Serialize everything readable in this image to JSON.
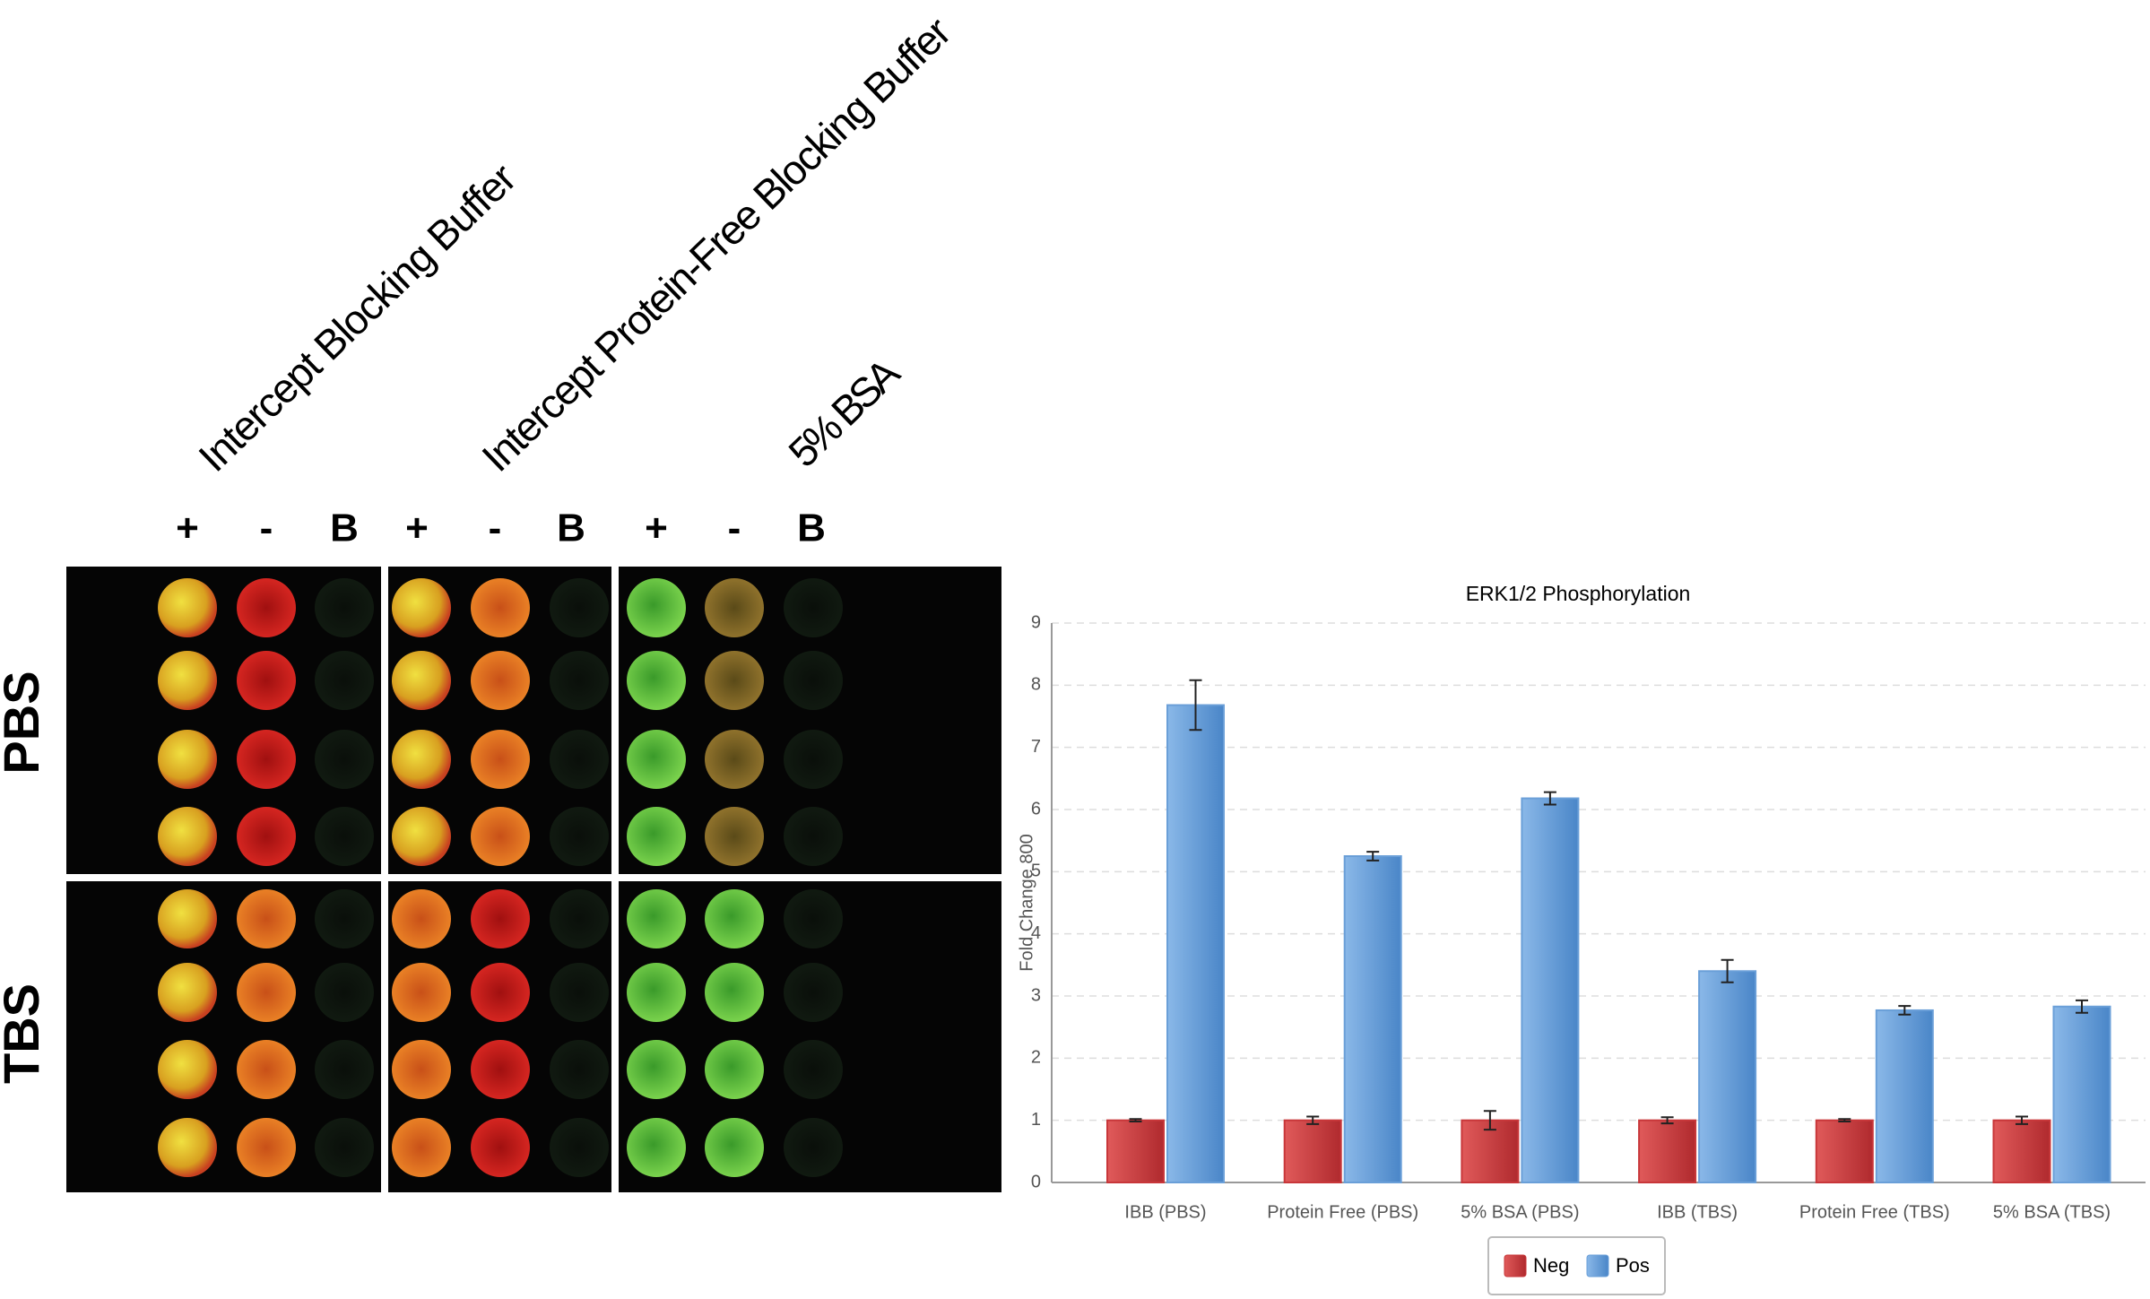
{
  "plate": {
    "groups": [
      {
        "label": "Intercept Blocking Buffer",
        "lanes": [
          "+",
          "-",
          "B"
        ]
      },
      {
        "label": "Intercept Protein-Free Blocking Buffer",
        "lanes": [
          "+",
          "-",
          "B"
        ]
      },
      {
        "label": "5% BSA",
        "lanes": [
          "+",
          "-",
          "B"
        ]
      }
    ],
    "rows": [
      "PBS",
      "TBS"
    ]
  },
  "chart_data": {
    "type": "bar",
    "title": "ERK1/2 Phosphorylation",
    "y_label": "Fold Change 800",
    "categories": [
      "IBB (PBS)",
      "Protein Free (PBS)",
      "5% BSA (PBS)",
      "IBB (TBS)",
      "Protein Free (TBS)",
      "5% BSA (TBS)"
    ],
    "series": [
      {
        "name": "Neg",
        "color": "#c8373a",
        "values": [
          1,
          1,
          1,
          1,
          1,
          1
        ],
        "errors": [
          0.02,
          0.06,
          0.15,
          0.05,
          0.02,
          0.06
        ]
      },
      {
        "name": "Pos",
        "color": "#6a9fd8",
        "values": [
          7.68,
          5.25,
          6.18,
          3.4,
          2.77,
          2.83
        ],
        "errors": [
          0.4,
          0.07,
          0.1,
          0.18,
          0.07,
          0.1
        ]
      }
    ],
    "ylim": [
      0,
      9
    ],
    "yticks": [
      0,
      1,
      2,
      3,
      4,
      5,
      6,
      7,
      8,
      9
    ],
    "grid": true,
    "legend": "bottom"
  }
}
